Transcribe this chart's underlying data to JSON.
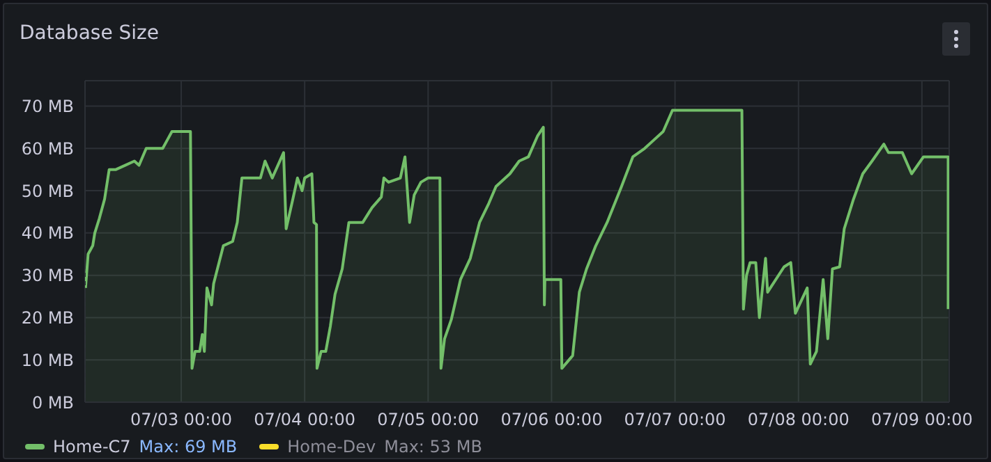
{
  "chart_data": {
    "type": "area",
    "title": "Database Size",
    "series": [
      {
        "name": "Home-C7",
        "color": "#73bf69",
        "x": [
          "--07-02T05:24",
          "--07-02T05:54",
          "--07-02T06:48",
          "--07-02T07:12",
          "--07-02T08:06",
          "--07-02T09:06",
          "--07-02T10:00",
          "--07-02T11:18",
          "--07-02T13:06",
          "--07-02T14:54",
          "--07-02T15:48",
          "--07-02T17:12",
          "--07-02T20:24",
          "--07-02T21:18",
          "--07-02T22:12",
          "--07-03T01:48",
          "--07-03T02:06",
          "--07-03T02:42",
          "--07-03T03:36",
          "--07-03T04:06",
          "--07-03T04:30",
          "--07-03T05:00",
          "--07-03T05:54",
          "--07-03T06:18",
          "--07-03T08:12",
          "--07-03T10:00",
          "--07-03T10:54",
          "--07-03T11:48",
          "--07-03T15:24",
          "--07-03T16:18",
          "--07-03T17:42",
          "--07-03T19:54",
          "--07-03T20:24",
          "--07-03T21:42",
          "--07-03T22:36",
          "--07-03T23:30",
          "--07-04T00:00",
          "--07-04T01:24",
          "--07-04T01:48",
          "--07-04T02:18",
          "--07-04T02:24",
          "--07-04T03:12",
          "--07-04T04:06",
          "--07-04T05:00",
          "--07-04T05:54",
          "--07-04T07:18",
          "--07-04T08:36",
          "--07-04T11:18",
          "--07-04T13:06",
          "--07-04T14:54",
          "--07-04T15:24",
          "--07-04T16:18",
          "--07-04T18:36",
          "--07-04T19:30",
          "--07-04T20:24",
          "--07-04T21:18",
          "--07-04T22:36",
          "--07-05T00:00",
          "--07-05T02:18",
          "--07-05T02:30",
          "--07-05T03:12",
          "--07-05T04:30",
          "--07-05T06:18",
          "--07-05T08:12",
          "--07-05T10:00",
          "--07-05T11:48",
          "--07-05T13:12",
          "--07-05T15:54",
          "--07-05T17:42",
          "--07-05T19:30",
          "--07-05T21:18",
          "--07-05T22:24",
          "--07-05T22:36",
          "--07-05T22:42",
          "--07-06T01:48",
          "--07-06T02:00",
          "--07-06T04:06",
          "--07-06T05:24",
          "--07-06T06:48",
          "--07-06T08:36",
          "--07-06T10:48",
          "--07-06T13:36",
          "--07-06T15:48",
          "--07-06T18:06",
          "--07-06T19:54",
          "--07-06T21:42",
          "--07-06T23:30",
          "--07-07T13:00",
          "--07-07T13:18",
          "--07-07T13:54",
          "--07-07T14:36",
          "--07-07T15:42",
          "--07-07T16:24",
          "--07-07T17:36",
          "--07-07T18:00",
          "--07-07T21:12",
          "--07-07T22:30",
          "--07-07T23:24",
          "--07-08T01:42",
          "--07-08T02:18",
          "--07-08T03:30",
          "--07-08T04:48",
          "--07-08T05:42",
          "--07-08T06:36",
          "--07-08T08:00",
          "--07-08T08:54",
          "--07-08T10:42",
          "--07-08T12:30",
          "--07-08T14:18",
          "--07-08T16:36",
          "--07-08T17:30",
          "--07-08T20:12",
          "--07-08T22:00",
          "--07-09T00:18",
          "--07-09T05:06",
          "--07-09T05:06"
        ],
        "values": [
          27,
          35,
          37,
          40,
          43.5,
          48,
          55,
          55,
          56,
          57,
          56,
          60,
          60,
          62,
          64,
          64,
          8,
          12,
          12,
          16,
          12,
          27,
          23,
          28,
          37,
          38,
          42.5,
          53,
          53,
          57,
          53,
          59,
          41,
          48,
          53,
          50,
          53,
          54,
          42.5,
          42,
          8,
          12,
          12,
          18,
          25.5,
          31.5,
          42.5,
          42.5,
          46,
          48.5,
          53,
          52,
          53,
          58,
          42.5,
          49,
          52,
          53,
          53,
          8,
          15,
          19.5,
          29,
          34,
          42.5,
          47,
          51,
          54,
          57,
          58,
          63,
          65,
          23,
          29,
          29,
          8,
          11,
          26,
          31.5,
          37,
          42.5,
          51,
          58,
          60,
          62,
          64,
          69,
          69,
          22,
          30,
          33,
          33,
          20,
          34,
          26,
          32,
          33,
          21,
          27,
          9,
          12,
          29,
          15,
          31.5,
          32,
          41,
          48,
          54,
          57,
          61,
          59,
          59,
          54,
          58,
          58,
          22
        ]
      },
      {
        "name": "Home-Dev",
        "color": "#fade2a"
      }
    ],
    "annotations": [
      "Max: 69 MB",
      "Max: 53 MB"
    ],
    "xlim": [
      "--07-02T05:18",
      "--07-09T05:18"
    ],
    "xticks": [
      {
        "value": "--07-03T00:00",
        "label": "07/03 00:00"
      },
      {
        "value": "--07-04T00:00",
        "label": "07/04 00:00"
      },
      {
        "value": "--07-05T00:00",
        "label": "07/05 00:00"
      },
      {
        "value": "--07-06T00:00",
        "label": "07/06 00:00"
      },
      {
        "value": "--07-07T00:00",
        "label": "07/07 00:00"
      },
      {
        "value": "--07-08T00:00",
        "label": "07/08 00:00"
      },
      {
        "value": "--07-09T00:00",
        "label": "07/09 00:00"
      }
    ],
    "ylim": [
      0,
      76
    ],
    "yticks": [
      {
        "value": 0,
        "label": "0 MB"
      },
      {
        "value": 10,
        "label": "10 MB"
      },
      {
        "value": 20,
        "label": "20 MB"
      },
      {
        "value": 30,
        "label": "30 MB"
      },
      {
        "value": 40,
        "label": "40 MB"
      },
      {
        "value": 50,
        "label": "50 MB"
      },
      {
        "value": 60,
        "label": "60 MB"
      },
      {
        "value": 70,
        "label": "70 MB"
      }
    ],
    "grid": true,
    "legend": "bottom",
    "marker": "none",
    "line_style": "solid"
  }
}
